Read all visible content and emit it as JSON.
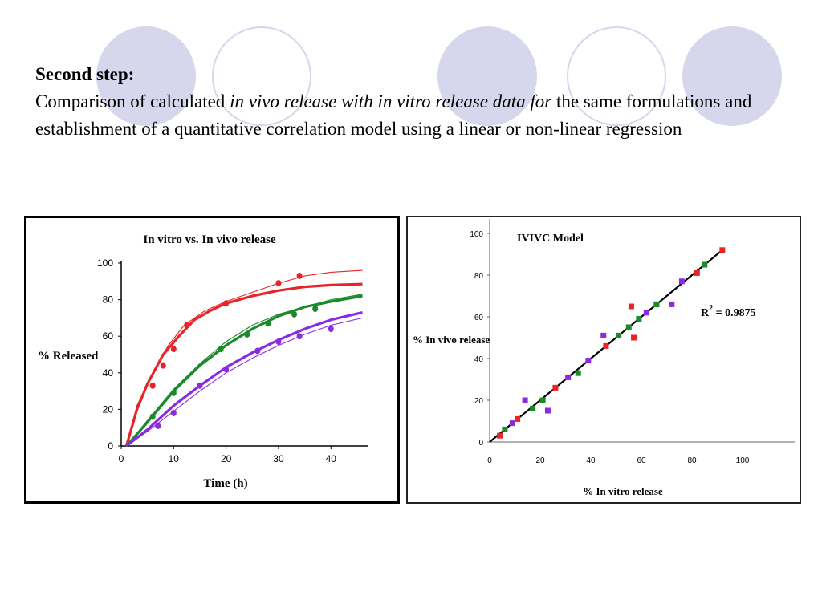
{
  "colors": {
    "circle": "#d6d6ec",
    "red": "#e8232a",
    "green": "#1a8a2a",
    "purple": "#8a2be2",
    "black": "#000000"
  },
  "text": {
    "heading": "Second step:",
    "line_parts": [
      {
        "text": "Comparison of calculated ",
        "style": "normal"
      },
      {
        "text": "in vivo release with in vitro release data for",
        "style": "italic"
      },
      {
        "text": " the same formulations and establishment of a quantitative correlation  model using a linear or non-linear regression",
        "style": "normal"
      }
    ]
  },
  "chart_data": [
    {
      "type": "line",
      "title": "In vitro vs. In vivo release",
      "xlabel": "Time (h)",
      "ylabel": "% Released",
      "xlim": [
        0,
        47
      ],
      "ylim": [
        0,
        100
      ],
      "x_ticks": [
        "0",
        "10",
        "20",
        "30",
        "40"
      ],
      "y_ticks": [
        "0",
        "20",
        "40",
        "60",
        "80",
        "100"
      ],
      "grid": false,
      "series": [
        {
          "color": "#e8232a",
          "fit": [
            [
              1,
              0
            ],
            [
              3,
              20
            ],
            [
              5,
              34
            ],
            [
              8,
              50
            ],
            [
              11,
              60
            ],
            [
              14,
              69
            ],
            [
              17,
              74
            ],
            [
              20,
              78
            ],
            [
              25,
              82
            ],
            [
              30,
              85
            ],
            [
              35,
              87
            ],
            [
              40,
              88
            ],
            [
              46,
              88.5
            ]
          ],
          "thin": [
            [
              1,
              0
            ],
            [
              3,
              22
            ],
            [
              6,
              40
            ],
            [
              9,
              55
            ],
            [
              12,
              66
            ],
            [
              16,
              74
            ],
            [
              20,
              79
            ],
            [
              25,
              84
            ],
            [
              30,
              89
            ],
            [
              35,
              93
            ],
            [
              40,
              95
            ],
            [
              46,
              96
            ]
          ],
          "points": [
            [
              6,
              33
            ],
            [
              8,
              44
            ],
            [
              10,
              53
            ],
            [
              12.5,
              66
            ],
            [
              20,
              78
            ],
            [
              30,
              89
            ],
            [
              34,
              93
            ]
          ]
        },
        {
          "color": "#1a8a2a",
          "fit": [
            [
              1,
              0
            ],
            [
              5,
              13
            ],
            [
              10,
              30
            ],
            [
              15,
              44
            ],
            [
              20,
              55
            ],
            [
              25,
              64
            ],
            [
              30,
              71
            ],
            [
              35,
              76
            ],
            [
              40,
              79
            ],
            [
              46,
              82
            ]
          ],
          "thin": [
            [
              1,
              0
            ],
            [
              5,
              14
            ],
            [
              10,
              31
            ],
            [
              15,
              45
            ],
            [
              20,
              57
            ],
            [
              25,
              66
            ],
            [
              30,
              72
            ],
            [
              35,
              76
            ],
            [
              40,
              80
            ],
            [
              46,
              83
            ]
          ],
          "points": [
            [
              6,
              16
            ],
            [
              10,
              29
            ],
            [
              19,
              53
            ],
            [
              24,
              61
            ],
            [
              28,
              67
            ],
            [
              33,
              72
            ],
            [
              37,
              75
            ]
          ]
        },
        {
          "color": "#8a2be2",
          "fit": [
            [
              1,
              0
            ],
            [
              5,
              9
            ],
            [
              10,
              22
            ],
            [
              15,
              33
            ],
            [
              20,
              43
            ],
            [
              25,
              51
            ],
            [
              30,
              58
            ],
            [
              35,
              64
            ],
            [
              40,
              69
            ],
            [
              46,
              73
            ]
          ],
          "thin": [
            [
              1,
              0
            ],
            [
              5,
              8
            ],
            [
              10,
              19
            ],
            [
              15,
              30
            ],
            [
              20,
              40
            ],
            [
              25,
              48
            ],
            [
              30,
              55
            ],
            [
              35,
              61
            ],
            [
              40,
              66
            ],
            [
              46,
              70
            ]
          ],
          "points": [
            [
              7,
              11
            ],
            [
              10,
              18
            ],
            [
              15,
              33
            ],
            [
              20,
              42
            ],
            [
              26,
              52
            ],
            [
              30,
              57
            ],
            [
              34,
              60
            ],
            [
              40,
              64
            ]
          ]
        }
      ]
    },
    {
      "type": "scatter",
      "title": "IVIVC Model",
      "xlabel": "% In vitro release",
      "ylabel": "% In vivo release",
      "xlim": [
        0,
        110
      ],
      "ylim": [
        0,
        105
      ],
      "x_ticks": [
        "0",
        "20",
        "40",
        "60",
        "80",
        "100"
      ],
      "y_ticks": [
        "0",
        "20",
        "40",
        "60",
        "80",
        "100"
      ],
      "grid": false,
      "annotation": {
        "prefix": "R",
        "sup": "2",
        "suffix": " = 0.9875"
      },
      "fit_line": [
        [
          0,
          0
        ],
        [
          92,
          92
        ]
      ],
      "series": [
        {
          "color": "#e8232a",
          "points": [
            [
              4,
              3
            ],
            [
              11,
              11
            ],
            [
              26,
              26
            ],
            [
              46,
              46
            ],
            [
              56,
              65
            ],
            [
              57,
              50
            ],
            [
              66,
              66
            ],
            [
              82,
              81
            ],
            [
              92,
              92
            ]
          ]
        },
        {
          "color": "#1a8a2a",
          "points": [
            [
              6,
              6
            ],
            [
              17,
              16
            ],
            [
              21,
              20
            ],
            [
              35,
              33
            ],
            [
              51,
              51
            ],
            [
              55,
              55
            ],
            [
              59,
              59
            ],
            [
              66,
              66
            ],
            [
              85,
              85
            ]
          ]
        },
        {
          "color": "#8a2be2",
          "points": [
            [
              9,
              9
            ],
            [
              14,
              20
            ],
            [
              23,
              15
            ],
            [
              31,
              31
            ],
            [
              39,
              39
            ],
            [
              45,
              51
            ],
            [
              62,
              62
            ],
            [
              72,
              66
            ],
            [
              76,
              77
            ]
          ]
        }
      ]
    }
  ]
}
